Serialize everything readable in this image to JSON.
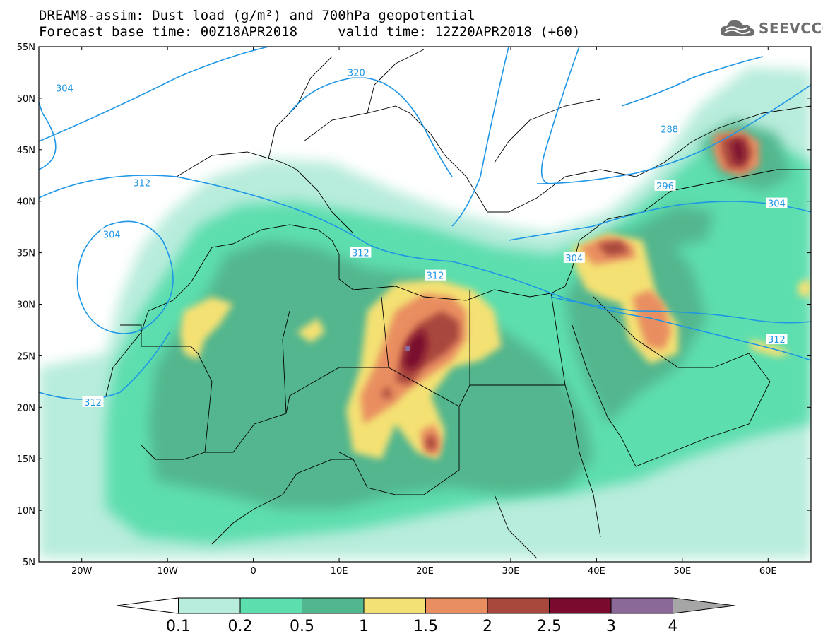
{
  "title": {
    "line1": "DREAM8-assim: Dust load (g/m²) and 700hPa geopotential",
    "line2": "Forecast base time: 00Z18APR2018     valid time: 12Z20APR2018 (+60)"
  },
  "logo": {
    "text": "SEEVCCC",
    "icon": "cloud-icon"
  },
  "map": {
    "lon_range": [
      -25,
      65
    ],
    "lat_range": [
      5,
      55
    ],
    "lat_ticks": [
      {
        "value": 55,
        "label": "55N"
      },
      {
        "value": 50,
        "label": "50N"
      },
      {
        "value": 45,
        "label": "45N"
      },
      {
        "value": 40,
        "label": "40N"
      },
      {
        "value": 35,
        "label": "35N"
      },
      {
        "value": 30,
        "label": "30N"
      },
      {
        "value": 25,
        "label": "25N"
      },
      {
        "value": 20,
        "label": "20N"
      },
      {
        "value": 15,
        "label": "15N"
      },
      {
        "value": 10,
        "label": "10N"
      },
      {
        "value": 5,
        "label": "5N"
      }
    ],
    "lon_ticks": [
      {
        "value": -20,
        "label": "20W"
      },
      {
        "value": -10,
        "label": "10W"
      },
      {
        "value": 0,
        "label": "0"
      },
      {
        "value": 10,
        "label": "10E"
      },
      {
        "value": 20,
        "label": "20E"
      },
      {
        "value": 30,
        "label": "30E"
      },
      {
        "value": 40,
        "label": "40E"
      },
      {
        "value": 50,
        "label": "50E"
      },
      {
        "value": 60,
        "label": "60E"
      }
    ],
    "contour_color": "#1e96e6",
    "contour_labels": [
      {
        "text": "304",
        "lon": -22,
        "lat": 51
      },
      {
        "text": "320",
        "lon": 12,
        "lat": 52.5
      },
      {
        "text": "288",
        "lon": 48.5,
        "lat": 47
      },
      {
        "text": "312",
        "lon": -13,
        "lat": 41.8
      },
      {
        "text": "296",
        "lon": 48,
        "lat": 41.5
      },
      {
        "text": "304",
        "lon": -16.5,
        "lat": 36.8
      },
      {
        "text": "304",
        "lon": 61,
        "lat": 39.8
      },
      {
        "text": "312",
        "lon": 12.5,
        "lat": 35
      },
      {
        "text": "312",
        "lon": 21.2,
        "lat": 32.8
      },
      {
        "text": "304",
        "lon": 37.4,
        "lat": 34.5
      },
      {
        "text": "312",
        "lon": 61,
        "lat": 26.6
      },
      {
        "text": "312",
        "lon": -18.7,
        "lat": 20.5
      }
    ]
  },
  "colorbar": {
    "levels": [
      "0.1",
      "0.2",
      "0.5",
      "1",
      "1.5",
      "2",
      "2.5",
      "3",
      "4"
    ],
    "colors": [
      "#ffffff",
      "#b8ecdc",
      "#5ddeae",
      "#52b68e",
      "#f4e173",
      "#e98e61",
      "#a8473c",
      "#7a0a2e",
      "#8a6897",
      "#a6a6a6"
    ]
  }
}
